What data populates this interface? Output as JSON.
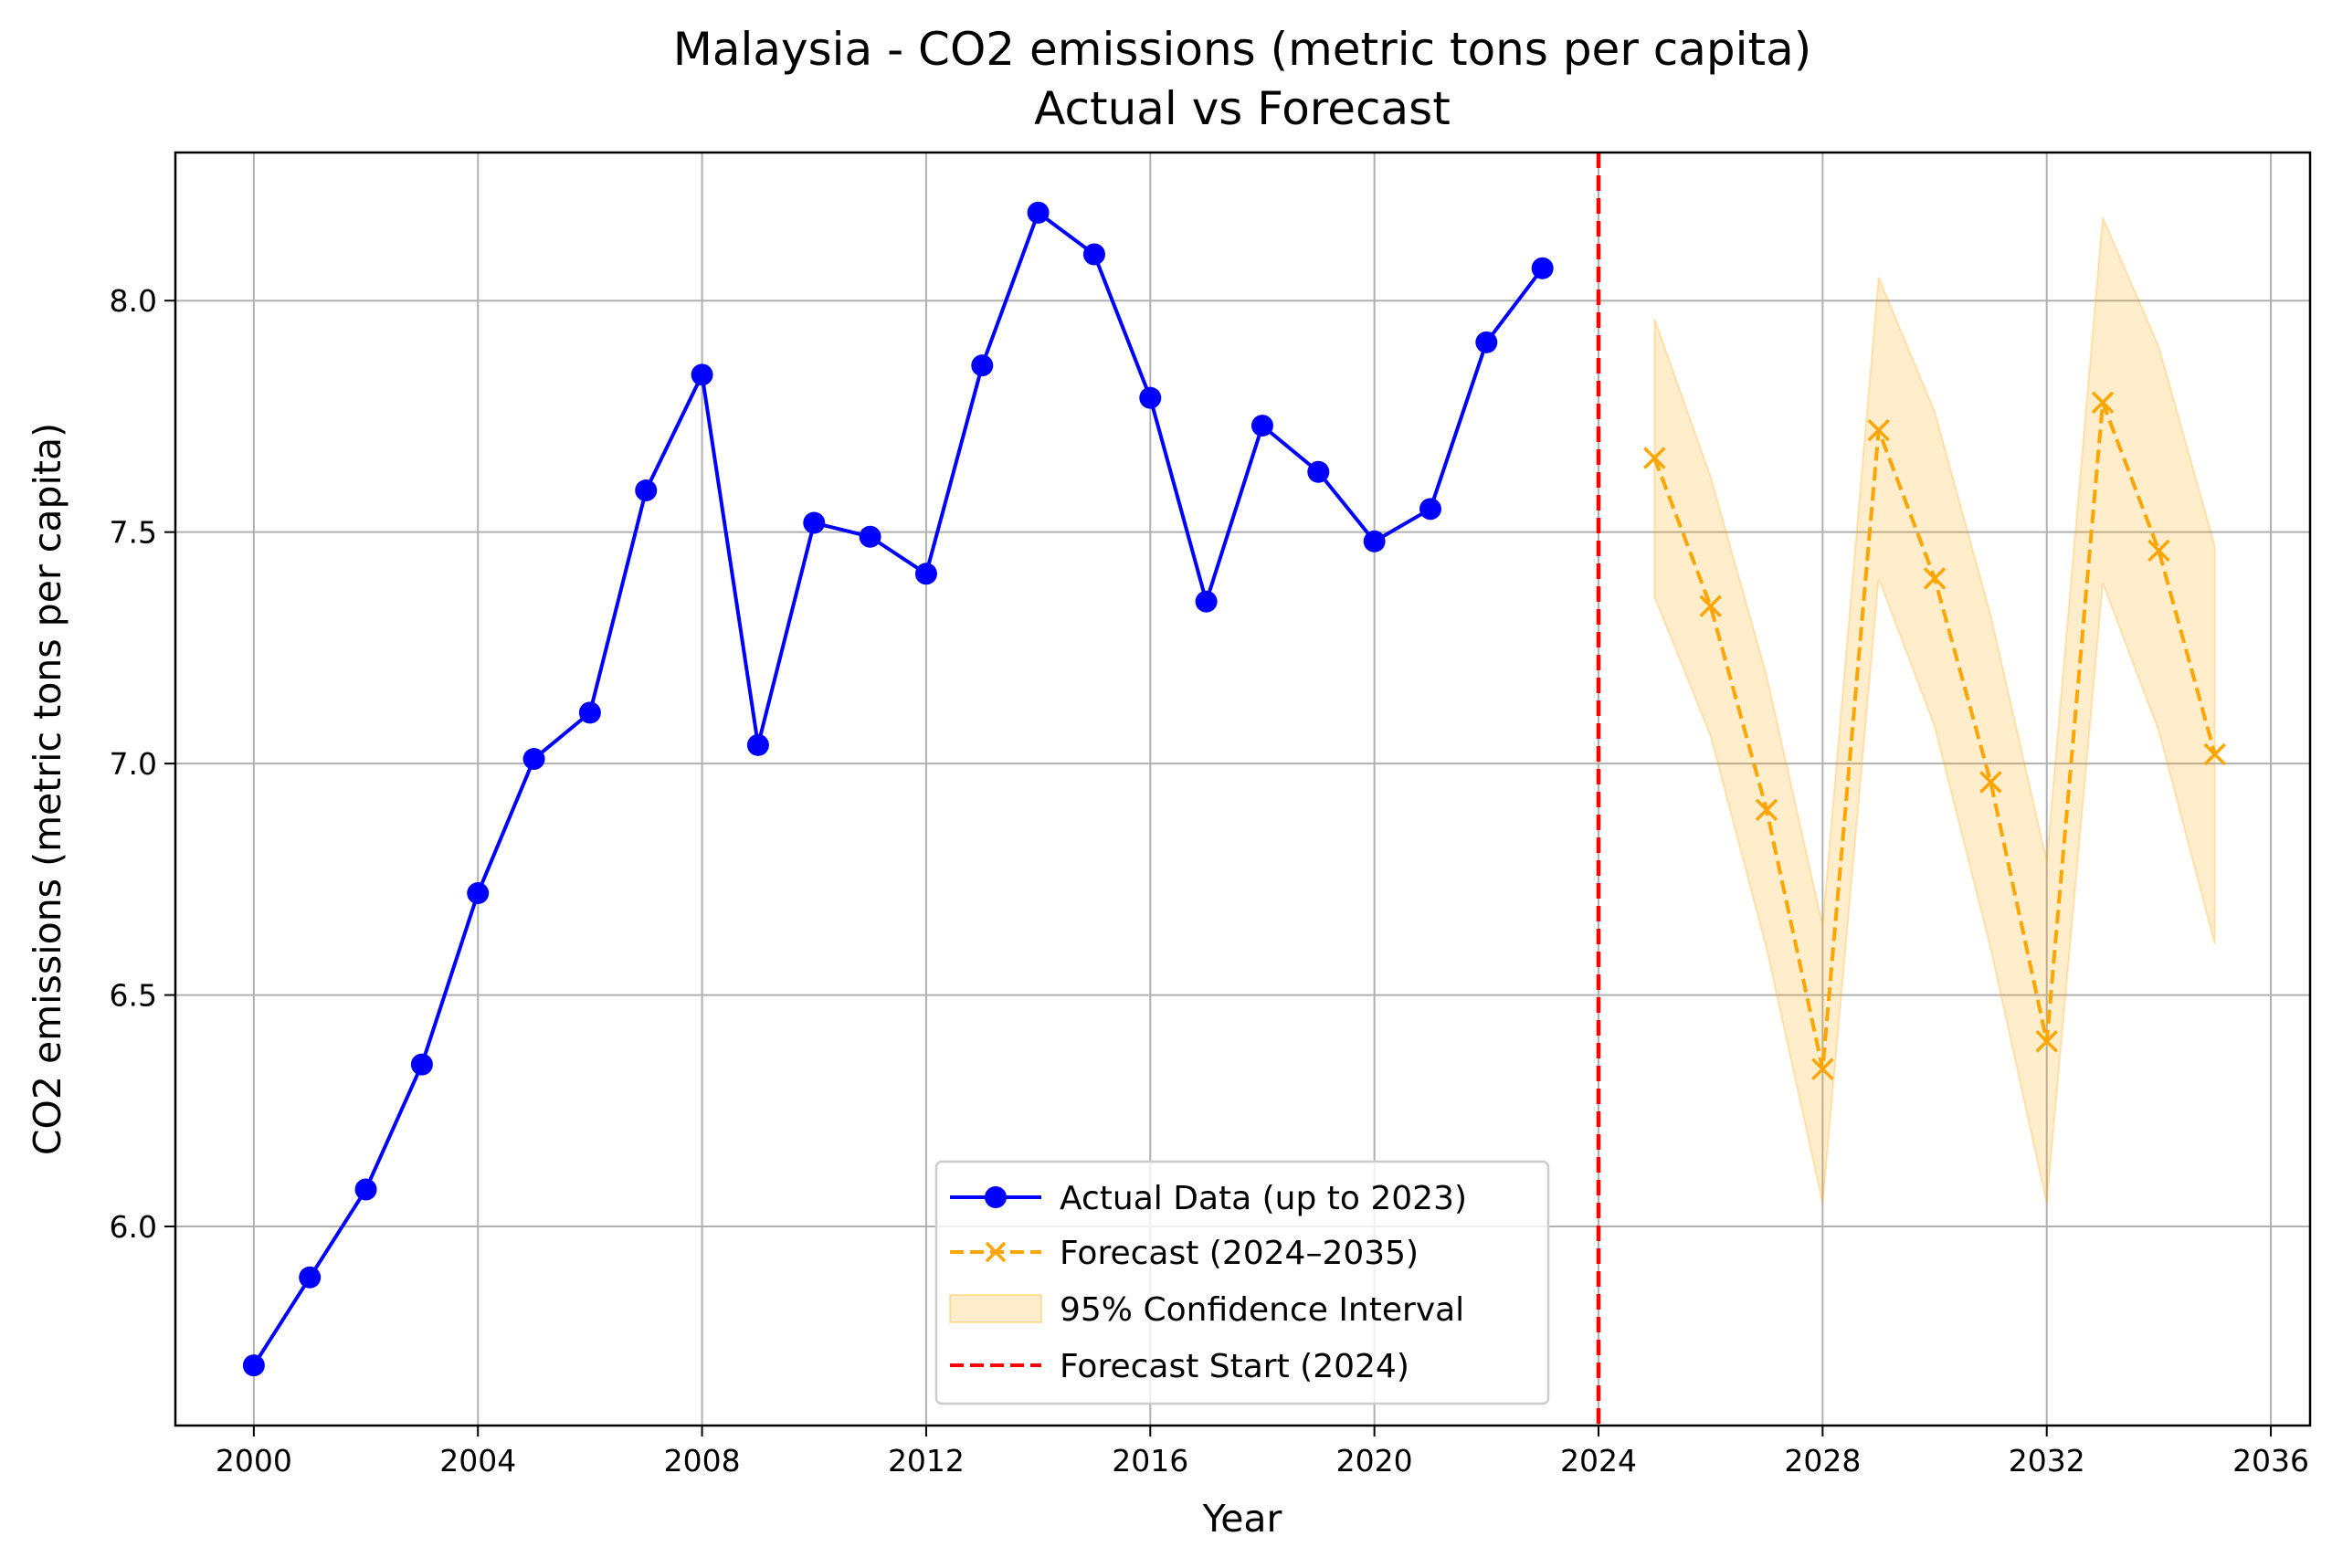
{
  "chart_data": {
    "type": "line",
    "title": "Malaysia - CO2 emissions (metric tons per capita)",
    "subtitle": "Actual vs Forecast",
    "xlabel": "Year",
    "ylabel": "CO2 emissions (metric tons per capita)",
    "xlim": [
      1998.6,
      2036.7
    ],
    "ylim": [
      5.57,
      8.32
    ],
    "xticks": [
      2000,
      2004,
      2008,
      2012,
      2016,
      2020,
      2024,
      2028,
      2032,
      2036
    ],
    "yticks": [
      6.0,
      6.5,
      7.0,
      7.5,
      8.0
    ],
    "ytick_labels": [
      "6.0",
      "6.5",
      "7.0",
      "7.5",
      "8.0"
    ],
    "grid": true,
    "legend_position": "bottom-center",
    "series": [
      {
        "name": "Actual Data (up to 2023)",
        "style": "solid-circle",
        "color": "#0000ff",
        "x": [
          2000,
          2001,
          2002,
          2003,
          2004,
          2005,
          2006,
          2007,
          2008,
          2009,
          2010,
          2011,
          2012,
          2013,
          2014,
          2015,
          2016,
          2017,
          2018,
          2019,
          2020,
          2021,
          2022,
          2023
        ],
        "y": [
          5.7,
          5.89,
          6.08,
          6.35,
          6.72,
          7.01,
          7.11,
          7.59,
          7.84,
          7.04,
          7.52,
          7.49,
          7.41,
          7.86,
          8.19,
          8.1,
          7.79,
          7.35,
          7.73,
          7.63,
          7.48,
          7.55,
          7.91,
          8.07
        ]
      },
      {
        "name": "Forecast (2024–2035)",
        "style": "dashed-x",
        "color": "#ffa500",
        "x": [
          2025,
          2026,
          2027,
          2028,
          2029,
          2030,
          2031,
          2032,
          2033,
          2034,
          2035
        ],
        "y": [
          7.66,
          7.34,
          6.9,
          6.34,
          7.72,
          7.4,
          6.96,
          6.4,
          7.78,
          7.46,
          7.02
        ]
      }
    ],
    "confidence_interval": {
      "name": "95% Confidence Interval",
      "color": "#ffa500",
      "x": [
        2025,
        2026,
        2027,
        2028,
        2029,
        2030,
        2031,
        2032,
        2033,
        2034,
        2035
      ],
      "lower": [
        7.36,
        7.06,
        6.6,
        6.05,
        7.4,
        7.08,
        6.6,
        6.05,
        7.39,
        7.07,
        6.61
      ],
      "upper": [
        7.96,
        7.62,
        7.19,
        6.65,
        8.05,
        7.76,
        7.32,
        6.79,
        8.18,
        7.9,
        7.47
      ]
    },
    "reference_line": {
      "name": "Forecast Start (2024)",
      "x": 2024,
      "color": "#ff0000",
      "style": "dashed"
    }
  }
}
